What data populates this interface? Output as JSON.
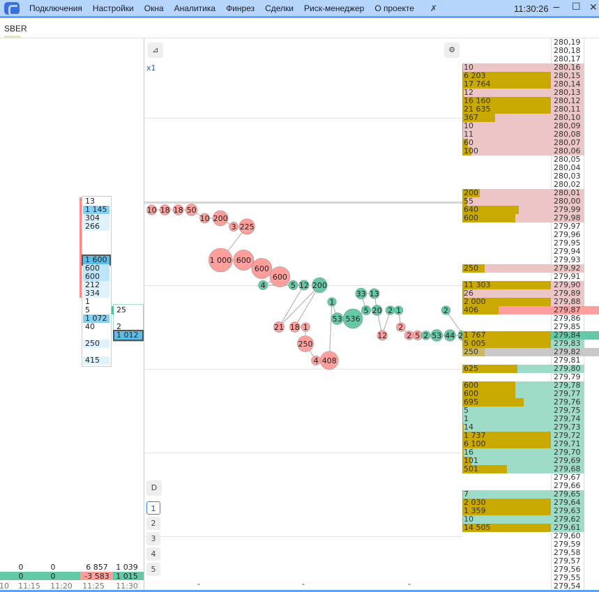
{
  "menu": {
    "items": [
      "Подключения",
      "Настройки",
      "Окна",
      "Аналитика",
      "Финрез",
      "Сделки",
      "Риск-менеджер",
      "О проекте"
    ],
    "clock": "11:30:26"
  },
  "tab": {
    "label": "SBER"
  },
  "chart": {
    "zoom_label": "x1",
    "d_label": "D",
    "levels": [
      "1",
      "2",
      "3",
      "4",
      "5"
    ],
    "dash": "-",
    "colors": {
      "buy": "#66c9a6",
      "sell": "#ff9e9a"
    },
    "trades": [
      {
        "p": 279.99,
        "v": "10",
        "s": "sell",
        "t": 2
      },
      {
        "p": 279.99,
        "v": "18",
        "s": "sell",
        "t": 5
      },
      {
        "p": 279.99,
        "v": "18",
        "s": "sell",
        "t": 7
      },
      {
        "p": 279.99,
        "v": "50",
        "s": "sell",
        "t": 10
      },
      {
        "p": 279.98,
        "v": "10",
        "s": "sell",
        "t": 14
      },
      {
        "p": 279.98,
        "v": "200",
        "s": "sell",
        "t": 17
      },
      {
        "p": 279.97,
        "v": "3",
        "s": "sell",
        "t": 21
      },
      {
        "p": 279.97,
        "v": "225",
        "s": "sell",
        "t": 25
      },
      {
        "p": 279.93,
        "v": "1 000",
        "s": "sell",
        "t": 28
      },
      {
        "p": 279.93,
        "v": "600",
        "s": "sell",
        "t": 33
      },
      {
        "p": 279.92,
        "v": "600",
        "s": "sell",
        "t": 36
      },
      {
        "p": 279.91,
        "v": "600",
        "s": "sell",
        "t": 40
      },
      {
        "p": 279.9,
        "v": "4",
        "s": "buy",
        "t": 44
      },
      {
        "p": 279.9,
        "v": "5",
        "s": "buy",
        "t": 46
      },
      {
        "p": 279.9,
        "v": "12",
        "s": "buy",
        "t": 48
      },
      {
        "p": 279.85,
        "v": "21",
        "s": "sell",
        "t": 50
      },
      {
        "p": 279.9,
        "v": "200",
        "s": "buy",
        "t": 52
      },
      {
        "p": 279.85,
        "v": "18",
        "s": "sell",
        "t": 56
      },
      {
        "p": 279.85,
        "v": "1",
        "s": "sell",
        "t": 58
      },
      {
        "p": 279.83,
        "v": "250",
        "s": "sell",
        "t": 60
      },
      {
        "p": 279.81,
        "v": "4",
        "s": "sell",
        "t": 64
      },
      {
        "p": 279.81,
        "v": "408",
        "s": "sell",
        "t": 66
      },
      {
        "p": 279.88,
        "v": "1",
        "s": "buy",
        "t": 70
      },
      {
        "p": 279.86,
        "v": "53",
        "s": "buy",
        "t": 72
      },
      {
        "p": 279.86,
        "v": "536",
        "s": "buy",
        "t": 76
      },
      {
        "p": 279.87,
        "v": "5",
        "s": "buy",
        "t": 80
      },
      {
        "p": 279.89,
        "v": "33",
        "s": "buy",
        "t": 81
      },
      {
        "p": 279.89,
        "v": "13",
        "s": "buy",
        "t": 84
      },
      {
        "p": 279.87,
        "v": "20",
        "s": "buy",
        "t": 86
      },
      {
        "p": 279.84,
        "v": "12",
        "s": "sell",
        "t": 89
      },
      {
        "p": 279.87,
        "v": "2",
        "s": "buy",
        "t": 92
      },
      {
        "p": 279.87,
        "v": "1",
        "s": "buy",
        "t": 94
      },
      {
        "p": 279.85,
        "v": "2",
        "s": "sell",
        "t": 96
      },
      {
        "p": 279.84,
        "v": "2",
        "s": "sell",
        "t": 97
      },
      {
        "p": 279.84,
        "v": "5",
        "s": "sell",
        "t": 99
      },
      {
        "p": 279.84,
        "v": "2",
        "s": "buy",
        "t": 101
      },
      {
        "p": 279.84,
        "v": "53",
        "s": "buy",
        "t": 104
      },
      {
        "p": 279.84,
        "v": "44",
        "s": "buy",
        "t": 108
      },
      {
        "p": 279.84,
        "v": "21",
        "s": "buy",
        "t": 111
      },
      {
        "p": 279.87,
        "v": "2",
        "s": "buy",
        "t": 113
      }
    ]
  },
  "book": {
    "rows": [
      [
        "280,19",
        "",
        ""
      ],
      [
        "280,18",
        "",
        ""
      ],
      [
        "280,17",
        "",
        ""
      ],
      [
        "280,16",
        "10",
        "ask"
      ],
      [
        "280,15",
        "6 203",
        "ask"
      ],
      [
        "280,14",
        "17 764",
        "ask"
      ],
      [
        "280,13",
        "12",
        "ask"
      ],
      [
        "280,12",
        "16 160",
        "ask"
      ],
      [
        "280,11",
        "21 635",
        "ask"
      ],
      [
        "280,10",
        "367",
        "ask"
      ],
      [
        "280,09",
        "10",
        "ask"
      ],
      [
        "280,08",
        "11",
        "ask"
      ],
      [
        "280,07",
        "60",
        "ask"
      ],
      [
        "280,06",
        "100",
        "ask"
      ],
      [
        "280,05",
        "",
        ""
      ],
      [
        "280,04",
        "",
        ""
      ],
      [
        "280,03",
        "",
        ""
      ],
      [
        "280,02",
        "",
        ""
      ],
      [
        "280,01",
        "200",
        "ask"
      ],
      [
        "280,00",
        "55",
        "ask"
      ],
      [
        "279,99",
        "640",
        "ask"
      ],
      [
        "279,98",
        "600",
        "ask"
      ],
      [
        "279,97",
        "",
        ""
      ],
      [
        "279,96",
        "",
        ""
      ],
      [
        "279,95",
        "",
        ""
      ],
      [
        "279,94",
        "",
        ""
      ],
      [
        "279,93",
        "",
        ""
      ],
      [
        "279,92",
        "250",
        "ask"
      ],
      [
        "279,91",
        "",
        ""
      ],
      [
        "279,90",
        "11 303",
        "ask"
      ],
      [
        "279,89",
        "26",
        "ask"
      ],
      [
        "279,88",
        "2 000",
        "ask"
      ],
      [
        "279,87",
        "406",
        "last"
      ],
      [
        "279,86",
        "",
        ""
      ],
      [
        "279,85",
        "",
        ""
      ],
      [
        "279,84",
        "1 767",
        "best"
      ],
      [
        "279,83",
        "5 005",
        "bid"
      ],
      [
        "279,82",
        "250",
        "gray"
      ],
      [
        "279,81",
        "",
        ""
      ],
      [
        "279,80",
        "625",
        "bid"
      ],
      [
        "279,79",
        "",
        ""
      ],
      [
        "279,78",
        "600",
        "bid"
      ],
      [
        "279,77",
        "600",
        "bid"
      ],
      [
        "279,76",
        "695",
        "bid"
      ],
      [
        "279,75",
        "5",
        "bid"
      ],
      [
        "279,74",
        "1",
        "bid"
      ],
      [
        "279,73",
        "14",
        "bid"
      ],
      [
        "279,72",
        "1 737",
        "bid"
      ],
      [
        "279,71",
        "6 100",
        "bid"
      ],
      [
        "279,70",
        "16",
        "bid"
      ],
      [
        "279,69",
        "101",
        "bid"
      ],
      [
        "279,68",
        "501",
        "bid"
      ],
      [
        "279,67",
        "",
        ""
      ],
      [
        "279,66",
        "",
        ""
      ],
      [
        "279,65",
        "7",
        "bid"
      ],
      [
        "279,64",
        "2 030",
        "bid"
      ],
      [
        "279,63",
        "1 359",
        "bid"
      ],
      [
        "279,62",
        "10",
        "bid"
      ],
      [
        "279,61",
        "14 505",
        "bid"
      ],
      [
        "279,60",
        "",
        ""
      ],
      [
        "279,59",
        "",
        ""
      ],
      [
        "279,58",
        "",
        ""
      ],
      [
        "279,57",
        "",
        ""
      ],
      [
        "279,56",
        "",
        ""
      ],
      [
        "279,55",
        "",
        ""
      ],
      [
        "279,54",
        "",
        ""
      ]
    ]
  },
  "clusters": {
    "col1": [
      [
        "13",
        19,
        "w"
      ],
      [
        "1 145",
        20,
        "m"
      ],
      [
        "304",
        21,
        "l"
      ],
      [
        "266",
        22,
        "l"
      ],
      [
        "1 600",
        26,
        "sel"
      ],
      [
        "600",
        27,
        "b"
      ],
      [
        "600",
        28,
        "b"
      ],
      [
        "212",
        29,
        "l"
      ],
      [
        "334",
        30,
        "l"
      ],
      [
        "1",
        31,
        "w"
      ],
      [
        "5",
        32,
        "w"
      ],
      [
        "1 072",
        33,
        "m"
      ],
      [
        "40",
        34,
        "w"
      ],
      [
        "250",
        36,
        "l"
      ],
      [
        "415",
        38,
        "l"
      ]
    ],
    "col2": [
      [
        "25",
        32,
        "w"
      ],
      [
        "2",
        34,
        "w"
      ],
      [
        "1 012",
        35,
        "sel"
      ]
    ]
  },
  "footer": {
    "row1": [
      "0",
      "0",
      "6 857",
      "1 039"
    ],
    "row2": [
      "0",
      "0",
      "-3 583",
      "1 015"
    ],
    "times": [
      "10",
      "11:15",
      "11:20",
      "11:25",
      "11:30"
    ]
  }
}
